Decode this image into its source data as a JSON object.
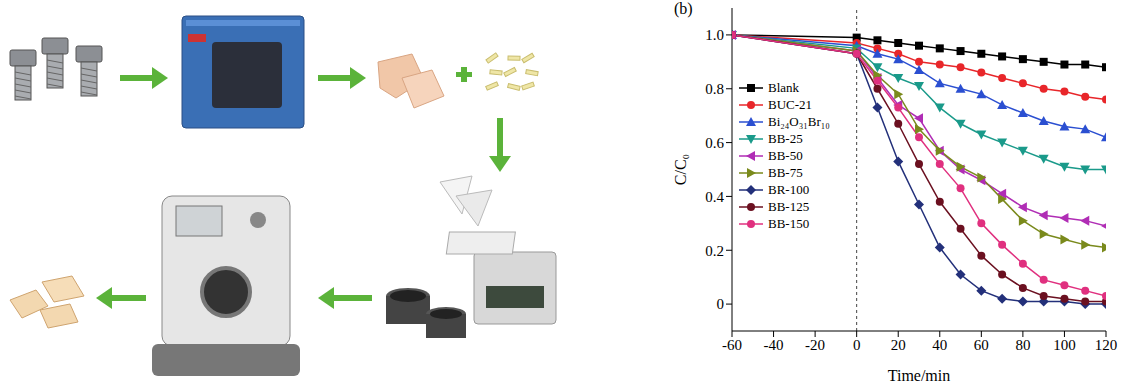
{
  "chart_data": {
    "type": "line",
    "panel_label": "(b)",
    "x_label": "Time/min",
    "y_label": "C/C₀",
    "x": [
      -60,
      0,
      10,
      20,
      30,
      40,
      50,
      60,
      70,
      80,
      90,
      100,
      110,
      120
    ],
    "xlim": [
      -60,
      120
    ],
    "xticks": [
      -60,
      -40,
      -20,
      0,
      20,
      40,
      60,
      80,
      100,
      120
    ],
    "ylim": [
      -0.1,
      1.1
    ],
    "yticks": [
      0,
      0.2,
      0.4,
      0.6,
      0.8,
      {
        "value": 1,
        "label": "1.0"
      }
    ],
    "vline": 0,
    "legend": "upper left",
    "grid": false,
    "series": [
      {
        "name": "Blank",
        "color": "#000000",
        "marker": "square",
        "values": [
          1.0,
          0.99,
          0.98,
          0.97,
          0.96,
          0.95,
          0.94,
          0.93,
          0.92,
          0.91,
          0.9,
          0.89,
          0.89,
          0.88
        ]
      },
      {
        "name": "BUC-21",
        "color": "#e8262a",
        "marker": "circle",
        "values": [
          1.0,
          0.97,
          0.95,
          0.93,
          0.9,
          0.89,
          0.88,
          0.86,
          0.84,
          0.82,
          0.8,
          0.79,
          0.77,
          0.76
        ]
      },
      {
        "name": "Bi₂₄O₃₁Br₁₀",
        "color": "#2b4fd1",
        "marker": "triangle",
        "values": [
          1.0,
          0.96,
          0.93,
          0.91,
          0.87,
          0.82,
          0.8,
          0.78,
          0.74,
          0.71,
          0.68,
          0.66,
          0.65,
          0.62
        ]
      },
      {
        "name": "BB-25",
        "color": "#1a9a8a",
        "marker": "triangle-down",
        "values": [
          1.0,
          0.95,
          0.88,
          0.84,
          0.81,
          0.73,
          0.67,
          0.63,
          0.6,
          0.57,
          0.54,
          0.51,
          0.5,
          0.5
        ]
      },
      {
        "name": "BB-50",
        "color": "#b02db5",
        "marker": "triangle-left",
        "values": [
          1.0,
          0.94,
          0.84,
          0.74,
          0.69,
          0.57,
          0.5,
          0.46,
          0.41,
          0.36,
          0.33,
          0.32,
          0.31,
          0.29
        ]
      },
      {
        "name": "BB-75",
        "color": "#7a8a1c",
        "marker": "triangle-right",
        "values": [
          1.0,
          0.94,
          0.85,
          0.78,
          0.65,
          0.57,
          0.51,
          0.47,
          0.39,
          0.31,
          0.26,
          0.24,
          0.22,
          0.21
        ]
      },
      {
        "name": "BR-100",
        "color": "#23307a",
        "marker": "diamond",
        "values": [
          1.0,
          0.93,
          0.73,
          0.53,
          0.37,
          0.21,
          0.11,
          0.05,
          0.02,
          0.01,
          0.01,
          0.01,
          0.0,
          0.0
        ]
      },
      {
        "name": "BB-125",
        "color": "#6b1020",
        "marker": "circle",
        "values": [
          1.0,
          0.93,
          0.8,
          0.67,
          0.52,
          0.38,
          0.28,
          0.18,
          0.11,
          0.06,
          0.03,
          0.02,
          0.01,
          0.01
        ]
      },
      {
        "name": "BB-150",
        "color": "#e0307f",
        "marker": "circle",
        "values": [
          1.0,
          0.93,
          0.83,
          0.73,
          0.62,
          0.52,
          0.43,
          0.3,
          0.22,
          0.15,
          0.09,
          0.07,
          0.05,
          0.03
        ]
      }
    ]
  }
}
